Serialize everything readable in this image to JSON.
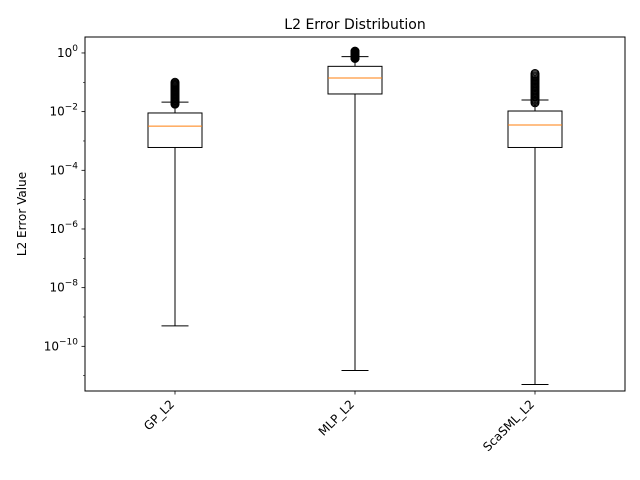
{
  "chart_data": {
    "type": "box",
    "title": "L2 Error Distribution",
    "xlabel": "",
    "ylabel": "L2 Error Value",
    "yscale": "log",
    "ylim": [
      3e-12,
      3.5
    ],
    "yticks": [
      {
        "value": 1.0,
        "base": "10",
        "exp": "0"
      },
      {
        "value": 0.01,
        "base": "10",
        "exp": "−2"
      },
      {
        "value": 0.0001,
        "base": "10",
        "exp": "−4"
      },
      {
        "value": 1e-06,
        "base": "10",
        "exp": "−6"
      },
      {
        "value": 1e-08,
        "base": "10",
        "exp": "−8"
      },
      {
        "value": 1e-10,
        "base": "10",
        "exp": "−10"
      }
    ],
    "grid": false,
    "categories": [
      "GP_L2",
      "MLP_L2",
      "ScaSML_L2"
    ],
    "boxes": [
      {
        "name": "GP_L2",
        "whisker_low": 5e-10,
        "q1": 0.0006,
        "median": 0.0032,
        "q3": 0.009,
        "whisker_high": 0.021,
        "outlier_range": [
          0.018,
          0.1
        ]
      },
      {
        "name": "MLP_L2",
        "whisker_low": 1.5e-11,
        "q1": 0.04,
        "median": 0.14,
        "q3": 0.35,
        "whisker_high": 0.75,
        "outlier_range": [
          0.65,
          1.15
        ]
      },
      {
        "name": "ScaSML_L2",
        "whisker_low": 5e-12,
        "q1": 0.0006,
        "median": 0.0035,
        "q3": 0.0105,
        "whisker_high": 0.025,
        "outlier_range": [
          0.02,
          0.2
        ]
      }
    ],
    "colors": {
      "box": "#000000",
      "median": "#ff7f0e",
      "outlier": "#000000"
    }
  }
}
